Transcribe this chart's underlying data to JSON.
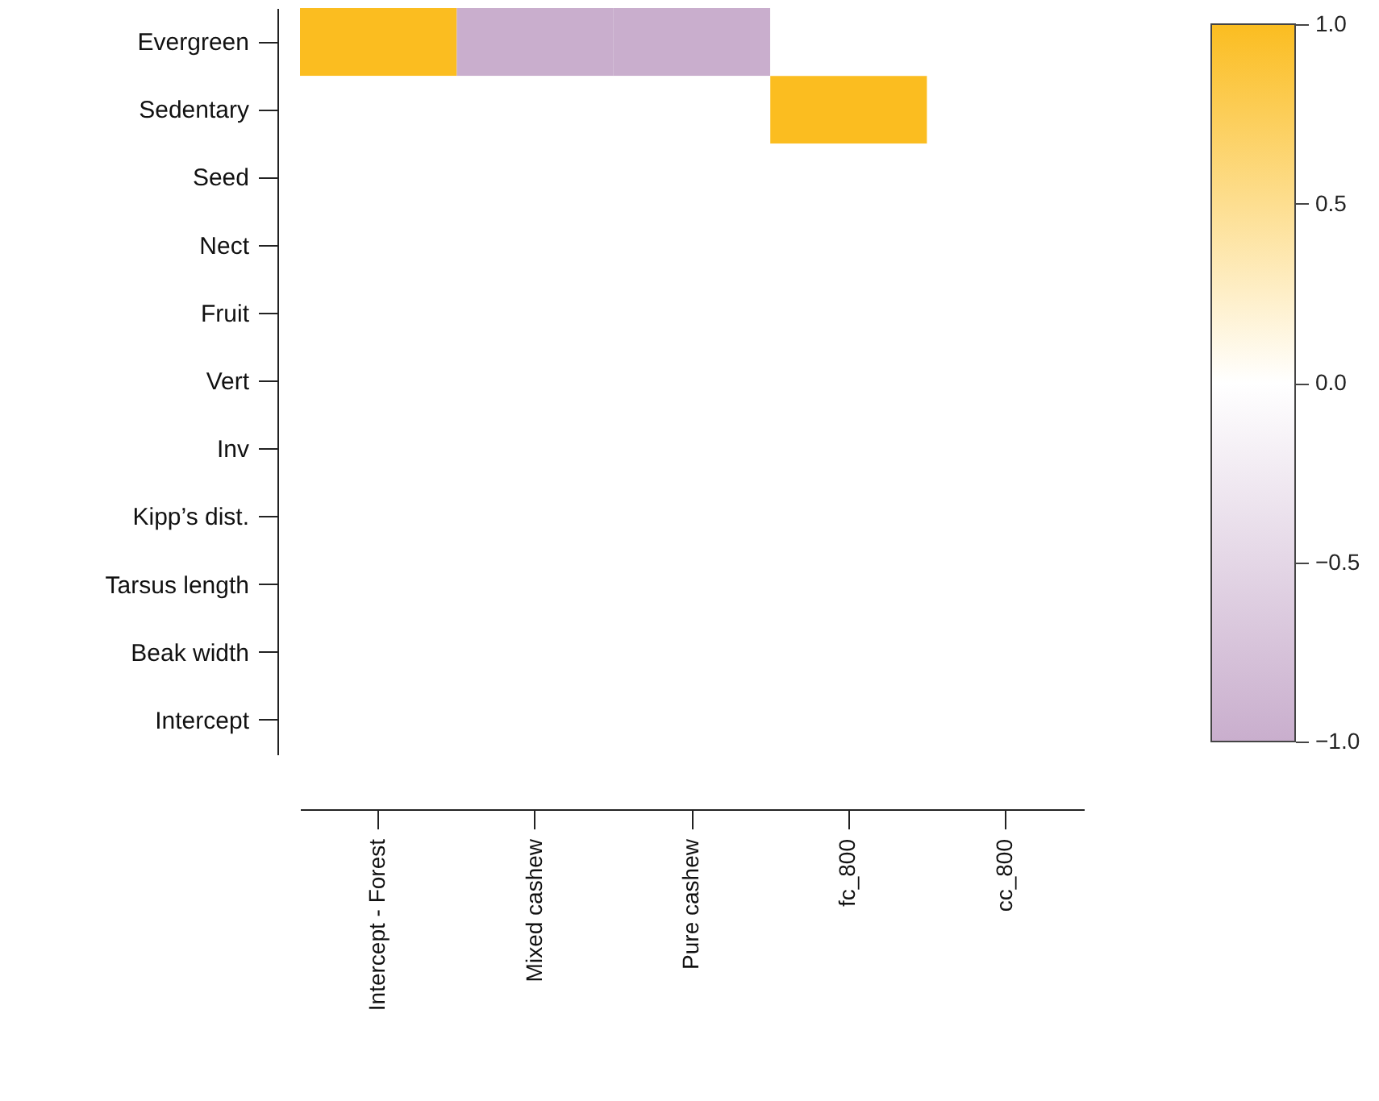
{
  "chart_data": {
    "type": "heatmap",
    "categories": [
      "Intercept - Forest",
      "Mixed cashew",
      "Pure cashew",
      "fc_800",
      "cc_800"
    ],
    "y_categories": [
      "Evergreen",
      "Sedentary",
      "Seed",
      "Nect",
      "Fruit",
      "Vert",
      "Inv",
      "Kipp’s dist.",
      "Tarsus length",
      "Beak width",
      "Intercept"
    ],
    "cells": [
      [
        1,
        -1,
        -1,
        0,
        0
      ],
      [
        0,
        0,
        0,
        1,
        0
      ],
      [
        0,
        0,
        0,
        0,
        0
      ],
      [
        0,
        0,
        0,
        0,
        0
      ],
      [
        0,
        0,
        0,
        0,
        0
      ],
      [
        0,
        0,
        0,
        0,
        0
      ],
      [
        0,
        0,
        0,
        0,
        0
      ],
      [
        0,
        0,
        0,
        0,
        0
      ],
      [
        0,
        0,
        0,
        0,
        0
      ],
      [
        0,
        0,
        0,
        0,
        0
      ],
      [
        0,
        0,
        0,
        0,
        0
      ]
    ],
    "clim": [
      -1,
      1
    ],
    "cticks": [
      {
        "value": -1,
        "label": "−1.0"
      },
      -0.5,
      {
        "value": 0,
        "label": "0.0"
      },
      0.5,
      {
        "value": 1,
        "label": "1.0"
      }
    ]
  }
}
